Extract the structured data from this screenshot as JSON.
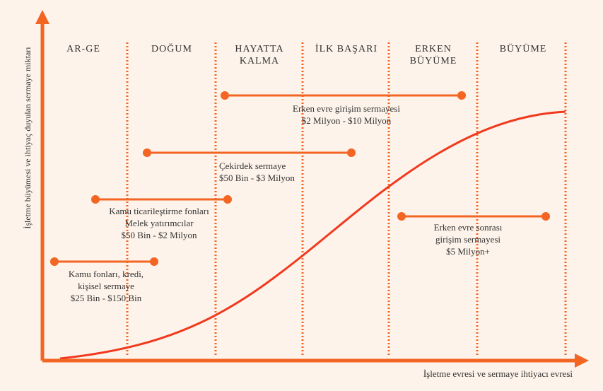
{
  "y_axis_label": "İşletme büyümesi ve ihtiyaç duyulan sermaye miktarı",
  "x_axis_label": "İşletme evresi ve sermaye ihtiyacı evresi",
  "stages": [
    {
      "lines": [
        "AR-GE"
      ]
    },
    {
      "lines": [
        "DOĞUM"
      ]
    },
    {
      "lines": [
        "HAYATTA",
        "KALMA"
      ]
    },
    {
      "lines": [
        "İLK BAŞARI"
      ]
    },
    {
      "lines": [
        "ERKEN",
        "BÜYÜME"
      ]
    },
    {
      "lines": [
        "BÜYÜME"
      ]
    }
  ],
  "funding": [
    {
      "lines": [
        "Erken evre girişim sermayesi",
        "$2 Milyon - $10 Milyon"
      ]
    },
    {
      "lines": [
        "Çekirdek sermaye",
        "$50 Bin - $3 Milyon"
      ]
    },
    {
      "lines": [
        "Kamu ticarileştirme fonları",
        "Melek yatırımcılar",
        "$50 Bin - $2 Milyon"
      ]
    },
    {
      "lines": [
        "Kamu fonları, kredi,",
        "kişisel sermaye",
        "$25 Bin - $150 Bin"
      ]
    },
    {
      "lines": [
        "Erken evre sonrası",
        "girişim sermayesi",
        "$5 Milyon+"
      ]
    }
  ]
}
